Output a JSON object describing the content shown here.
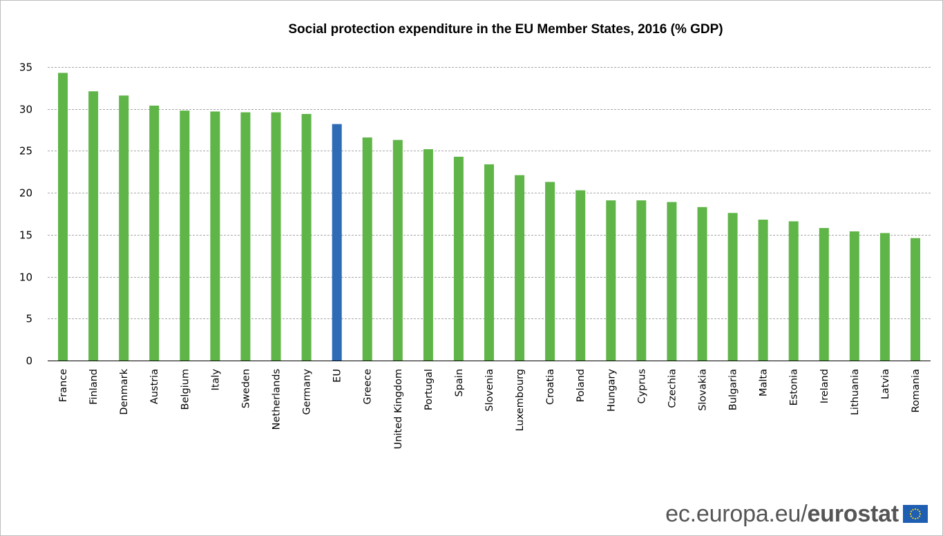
{
  "chart_data": {
    "type": "bar",
    "title": "Social protection expenditure in the EU Member States, 2016 (% GDP)",
    "xlabel": "",
    "ylabel": "",
    "ylim": [
      0,
      35
    ],
    "yticks": [
      0,
      5,
      10,
      15,
      20,
      25,
      30,
      35
    ],
    "grid": true,
    "legend": "none",
    "categories": [
      "France",
      "Finland",
      "Denmark",
      "Austria",
      "Belgium",
      "Italy",
      "Sweden",
      "Netherlands",
      "Germany",
      "EU",
      "Greece",
      "United Kingdom",
      "Portugal",
      "Spain",
      "Slovenia",
      "Luxembourg",
      "Croatia",
      "Poland",
      "Hungary",
      "Cyprus",
      "Czechia",
      "Slovakia",
      "Bulgaria",
      "Malta",
      "Estonia",
      "Ireland",
      "Lithuania",
      "Latvia",
      "Romania"
    ],
    "values": [
      34.3,
      32.1,
      31.6,
      30.4,
      29.8,
      29.7,
      29.6,
      29.6,
      29.4,
      28.2,
      26.6,
      26.3,
      25.2,
      24.3,
      23.4,
      22.1,
      21.3,
      20.3,
      19.1,
      19.1,
      18.9,
      18.3,
      17.6,
      16.8,
      16.6,
      15.8,
      15.4,
      15.2,
      14.6
    ],
    "colors": {
      "default": "#5fb548",
      "highlight": "#2e6bb5",
      "highlight_category": "EU"
    }
  },
  "footer": {
    "source_prefix": "ec.europa.eu/",
    "source_brand": "eurostat",
    "logo_icon": "eu-flag-icon"
  }
}
